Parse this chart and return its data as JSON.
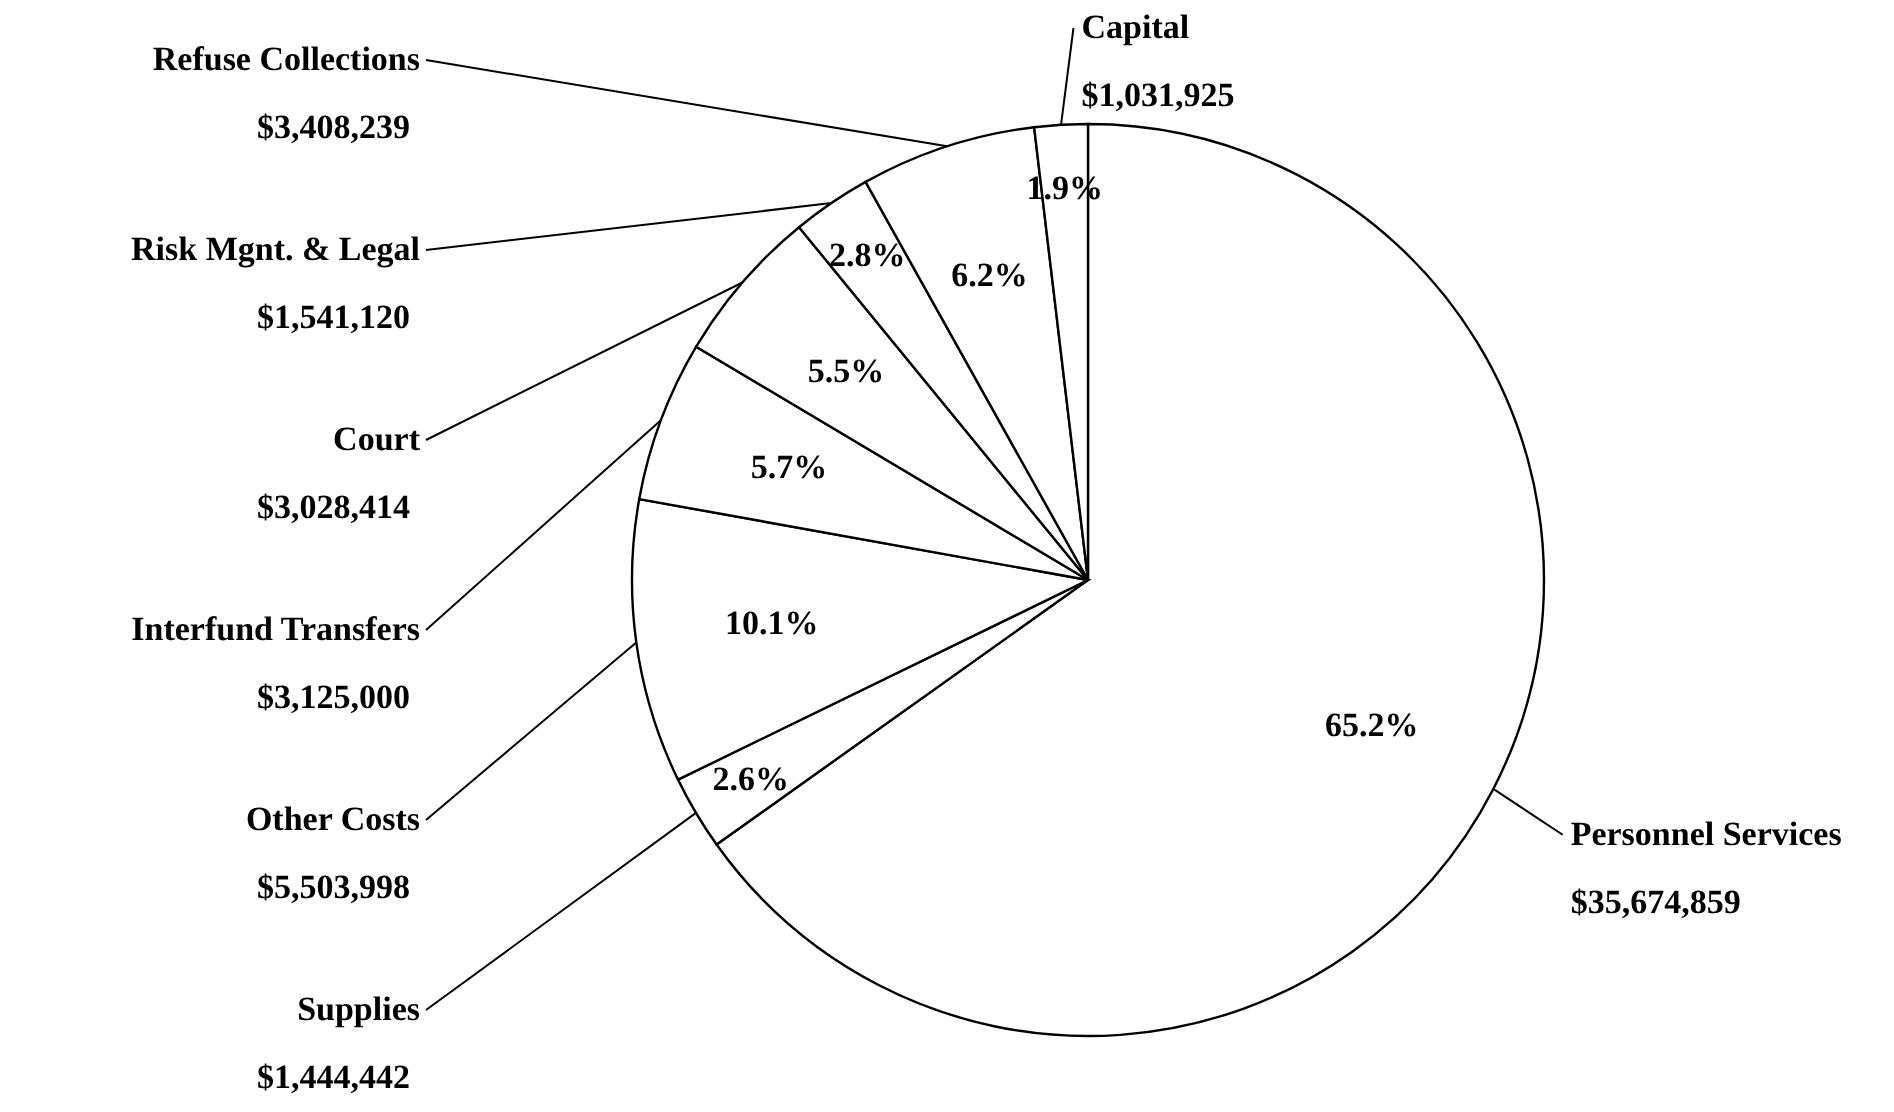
{
  "chart_data": {
    "type": "pie",
    "categories": [
      "Personnel Services",
      "Supplies",
      "Other Costs",
      "Interfund Transfers",
      "Court",
      "Risk Mgnt. & Legal",
      "Refuse Collections",
      "Capital"
    ],
    "values": [
      35674859,
      1444442,
      5503998,
      3125000,
      3028414,
      1541120,
      3408239,
      1031925
    ],
    "colors": [
      "#ffffff",
      "#ffffff",
      "#ffffff",
      "#ffffff",
      "#ffffff",
      "#ffffff",
      "#ffffff",
      "#ffffff"
    ],
    "value_labels": [
      "$35,674,859",
      "$1,444,442",
      "$5,503,998",
      "$3,125,000",
      "$3,028,414",
      "$1,541,120",
      "$3,408,239",
      "$1,031,925"
    ],
    "annotations": [
      "65.2%",
      "2.6%",
      "10.1%",
      "5.7%",
      "5.5%",
      "2.8%",
      "6.2%",
      "1.9%"
    ]
  }
}
